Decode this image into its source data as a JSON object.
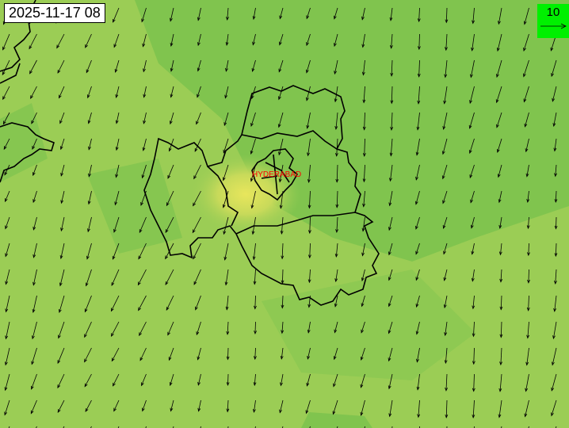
{
  "map": {
    "timestamp": "2025-11-17 08",
    "city_label": "HYDERABAD",
    "legend": {
      "reference_speed": "10",
      "arrow_icon": "reference-arrow-icon"
    },
    "colors": {
      "low": "#7cc24e",
      "mid": "#9acd55",
      "high": "#e3e35a",
      "legend_bg": "#00f000",
      "city": "#ff0000",
      "boundary": "#000000"
    }
  }
}
